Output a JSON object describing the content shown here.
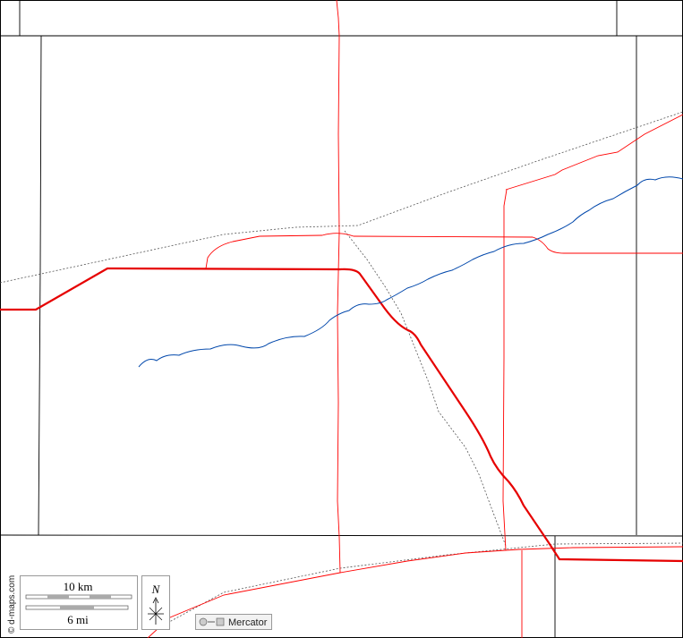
{
  "scale": {
    "km": "10 km",
    "mi": "6 mi"
  },
  "north": "N",
  "projection": "Mercator",
  "credit": "© d-maps.com"
}
